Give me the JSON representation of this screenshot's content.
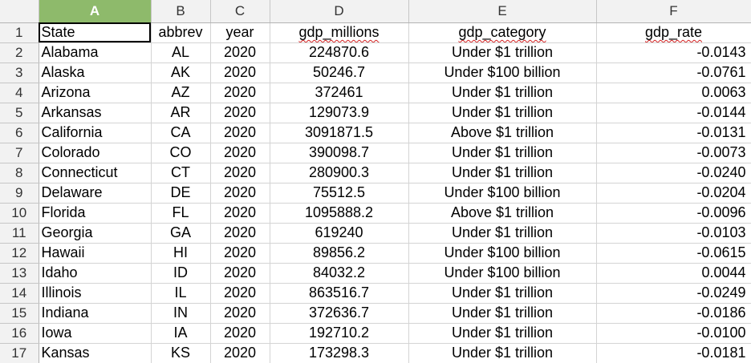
{
  "columns": [
    "A",
    "B",
    "C",
    "D",
    "E",
    "F"
  ],
  "header_row": {
    "row_number": "1",
    "cells": [
      "State",
      "abbrev",
      "year",
      "gdp_millions",
      "gdp_category",
      "gdp_rate"
    ]
  },
  "rows": [
    {
      "n": "2",
      "state": "Alabama",
      "abbrev": "AL",
      "year": "2020",
      "gdp_millions": "224870.6",
      "gdp_category": "Under $1 trillion",
      "gdp_rate": "-0.0143"
    },
    {
      "n": "3",
      "state": "Alaska",
      "abbrev": "AK",
      "year": "2020",
      "gdp_millions": "50246.7",
      "gdp_category": "Under $100 billion",
      "gdp_rate": "-0.0761"
    },
    {
      "n": "4",
      "state": "Arizona",
      "abbrev": "AZ",
      "year": "2020",
      "gdp_millions": "372461",
      "gdp_category": "Under $1 trillion",
      "gdp_rate": "0.0063"
    },
    {
      "n": "5",
      "state": "Arkansas",
      "abbrev": "AR",
      "year": "2020",
      "gdp_millions": "129073.9",
      "gdp_category": "Under $1 trillion",
      "gdp_rate": "-0.0144"
    },
    {
      "n": "6",
      "state": "California",
      "abbrev": "CA",
      "year": "2020",
      "gdp_millions": "3091871.5",
      "gdp_category": "Above $1 trillion",
      "gdp_rate": "-0.0131"
    },
    {
      "n": "7",
      "state": "Colorado",
      "abbrev": "CO",
      "year": "2020",
      "gdp_millions": "390098.7",
      "gdp_category": "Under $1 trillion",
      "gdp_rate": "-0.0073"
    },
    {
      "n": "8",
      "state": "Connecticut",
      "abbrev": "CT",
      "year": "2020",
      "gdp_millions": "280900.3",
      "gdp_category": "Under $1 trillion",
      "gdp_rate": "-0.0240"
    },
    {
      "n": "9",
      "state": "Delaware",
      "abbrev": "DE",
      "year": "2020",
      "gdp_millions": "75512.5",
      "gdp_category": "Under $100 billion",
      "gdp_rate": "-0.0204"
    },
    {
      "n": "10",
      "state": "Florida",
      "abbrev": "FL",
      "year": "2020",
      "gdp_millions": "1095888.2",
      "gdp_category": "Above $1 trillion",
      "gdp_rate": "-0.0096"
    },
    {
      "n": "11",
      "state": "Georgia",
      "abbrev": "GA",
      "year": "2020",
      "gdp_millions": "619240",
      "gdp_category": "Under $1 trillion",
      "gdp_rate": "-0.0103"
    },
    {
      "n": "12",
      "state": "Hawaii",
      "abbrev": "HI",
      "year": "2020",
      "gdp_millions": "89856.2",
      "gdp_category": "Under $100 billion",
      "gdp_rate": "-0.0615"
    },
    {
      "n": "13",
      "state": "Idaho",
      "abbrev": "ID",
      "year": "2020",
      "gdp_millions": "84032.2",
      "gdp_category": "Under $100 billion",
      "gdp_rate": "0.0044"
    },
    {
      "n": "14",
      "state": "Illinois",
      "abbrev": "IL",
      "year": "2020",
      "gdp_millions": "863516.7",
      "gdp_category": "Under $1 trillion",
      "gdp_rate": "-0.0249"
    },
    {
      "n": "15",
      "state": "Indiana",
      "abbrev": "IN",
      "year": "2020",
      "gdp_millions": "372636.7",
      "gdp_category": "Under $1 trillion",
      "gdp_rate": "-0.0186"
    },
    {
      "n": "16",
      "state": "Iowa",
      "abbrev": "IA",
      "year": "2020",
      "gdp_millions": "192710.2",
      "gdp_category": "Under $1 trillion",
      "gdp_rate": "-0.0100"
    },
    {
      "n": "17",
      "state": "Kansas",
      "abbrev": "KS",
      "year": "2020",
      "gdp_millions": "173298.3",
      "gdp_category": "Under $1 trillion",
      "gdp_rate": "-0.0181"
    }
  ],
  "colors": {
    "selected_column_header": "#8eba6b",
    "header_background": "#f2f2f2",
    "gridline": "#d4d4d4",
    "spellcheck": "#d21e1e"
  }
}
